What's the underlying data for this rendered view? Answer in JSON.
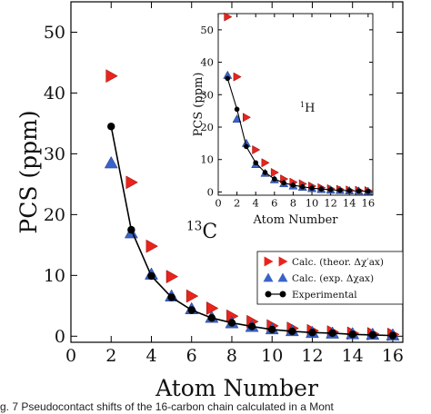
{
  "caption": "g. 7   Pseudocontact shifts of the 16-carbon chain calculated in a Mont",
  "chart_data": [
    {
      "type": "scatter",
      "xlabel": "Atom Number",
      "ylabel": "PCS (ppm)",
      "annotation_main": "13",
      "annotation_sub": "C",
      "xlim": [
        0,
        16.5
      ],
      "ylim": [
        -1,
        55
      ],
      "xticks": [
        0,
        2,
        4,
        6,
        8,
        10,
        12,
        14,
        16
      ],
      "yticks": [
        0,
        10,
        20,
        30,
        40,
        50
      ],
      "grid": false,
      "legend_placement": "lower-right",
      "series": [
        {
          "name": "Calc. (theor. Δχ′ax)",
          "marker": "right-triangle",
          "color": "#e8241c",
          "x": [
            2,
            3,
            4,
            5,
            6,
            7,
            8,
            9,
            10,
            11,
            12,
            13,
            14,
            15,
            16
          ],
          "y": [
            42.8,
            25.3,
            14.8,
            9.8,
            6.6,
            4.6,
            3.3,
            2.4,
            1.7,
            1.3,
            0.9,
            0.7,
            0.5,
            0.4,
            0.3
          ]
        },
        {
          "name": "Calc. (exp. Δχax)",
          "marker": "up-triangle",
          "color": "#3a63c8",
          "x": [
            2,
            3,
            4,
            5,
            6,
            7,
            8,
            9,
            10,
            11,
            12,
            13,
            14,
            15,
            16
          ],
          "y": [
            28.5,
            17.0,
            10.2,
            6.6,
            4.5,
            3.1,
            2.2,
            1.6,
            1.2,
            0.9,
            0.6,
            0.5,
            0.4,
            0.3,
            0.2
          ]
        },
        {
          "name": "Experimental",
          "marker": "circle-line",
          "color": "#000000",
          "x": [
            2,
            3,
            4,
            5,
            6,
            7,
            8,
            9,
            10,
            11,
            12,
            13,
            14,
            15,
            16
          ],
          "y": [
            34.5,
            17.5,
            9.9,
            6.4,
            4.3,
            3.0,
            2.2,
            1.6,
            1.1,
            0.8,
            0.6,
            0.5,
            0.3,
            0.2,
            0.1
          ]
        }
      ]
    },
    {
      "type": "scatter",
      "xlabel": "Atom Number",
      "ylabel": "PCS (ppm)",
      "annotation_main": "1",
      "annotation_sub": "H",
      "xlim": [
        0,
        16.5
      ],
      "ylim": [
        -1,
        55
      ],
      "xticks": [
        0,
        2,
        4,
        6,
        8,
        10,
        12,
        14,
        16
      ],
      "yticks": [
        0,
        10,
        20,
        30,
        40,
        50
      ],
      "grid": false,
      "series": [
        {
          "name": "Calc. (theor. Δχ′ax)",
          "marker": "right-triangle",
          "color": "#e8241c",
          "x": [
            1,
            2,
            3,
            4,
            5,
            6,
            7,
            8,
            9,
            10,
            11,
            12,
            13,
            14,
            15,
            16
          ],
          "y": [
            54.0,
            35.5,
            23.0,
            13.0,
            9.0,
            6.0,
            4.0,
            3.0,
            2.5,
            1.8,
            1.3,
            1.0,
            0.8,
            0.6,
            0.5,
            0.4
          ]
        },
        {
          "name": "Calc. (exp. Δχax)",
          "marker": "up-triangle",
          "color": "#3a63c8",
          "x": [
            1,
            2,
            3,
            4,
            5,
            6,
            7,
            8,
            9,
            10,
            11,
            12,
            13,
            14,
            15,
            16
          ],
          "y": [
            36.0,
            22.5,
            15.0,
            8.5,
            5.8,
            3.8,
            2.6,
            1.9,
            1.5,
            1.1,
            0.8,
            0.6,
            0.5,
            0.4,
            0.3,
            0.2
          ]
        },
        {
          "name": "Experimental",
          "marker": "circle-line",
          "color": "#000000",
          "x": [
            1,
            2,
            3,
            4,
            5,
            6,
            7,
            8,
            9,
            10,
            11,
            12,
            13,
            14,
            15,
            16
          ],
          "y": [
            35.0,
            25.5,
            14.0,
            9.0,
            6.0,
            4.0,
            2.8,
            2.1,
            1.6,
            1.2,
            0.9,
            0.7,
            0.5,
            0.4,
            0.3,
            0.2
          ]
        }
      ]
    }
  ]
}
